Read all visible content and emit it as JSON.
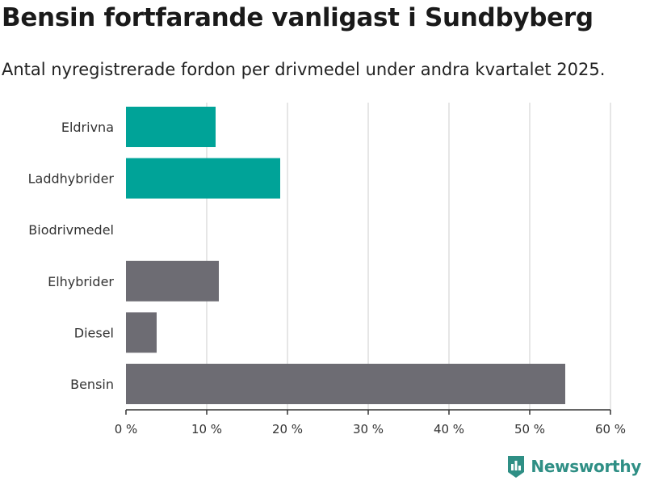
{
  "title": "Bensin fortfarande vanligast i Sundbyberg",
  "subtitle": "Antal nyregistrerade fordon per drivmedel under andra kvartalet 2025.",
  "brand": {
    "name": "Newsworthy",
    "icon": "newsworthy-logo-icon",
    "color": "#2f8f85"
  },
  "chart_data": {
    "type": "bar",
    "orientation": "horizontal",
    "title": "Bensin fortfarande vanligast i Sundbyberg",
    "subtitle": "Antal nyregistrerade fordon per drivmedel under andra kvartalet 2025.",
    "categories": [
      "Eldrivna",
      "Laddhybrider",
      "Biodrivmedel",
      "Elhybrider",
      "Diesel",
      "Bensin"
    ],
    "values": [
      11.1,
      19.1,
      0,
      11.5,
      3.8,
      54.4
    ],
    "colors": [
      "#00a398",
      "#00a398",
      "#00a398",
      "#6d6c73",
      "#6d6c73",
      "#6d6c73"
    ],
    "xlim": [
      0,
      60
    ],
    "xticks": [
      0,
      10,
      20,
      30,
      40,
      50,
      60
    ],
    "xtick_labels": [
      "0 %",
      "10 %",
      "20 %",
      "30 %",
      "40 %",
      "50 %",
      "60 %"
    ],
    "grid": true
  }
}
